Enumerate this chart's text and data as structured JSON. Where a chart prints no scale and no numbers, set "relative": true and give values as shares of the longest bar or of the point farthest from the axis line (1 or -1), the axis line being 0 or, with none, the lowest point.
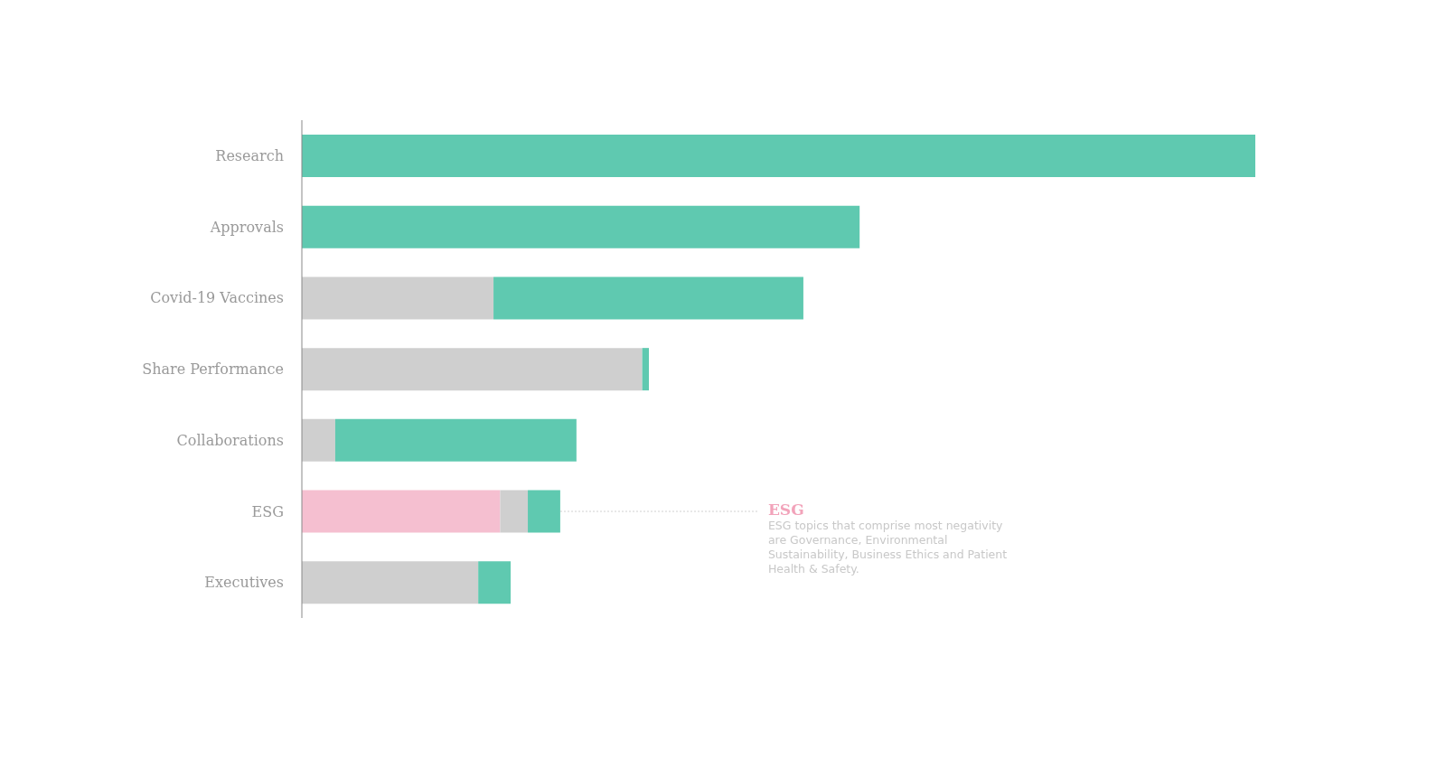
{
  "chart_data": {
    "type": "bar",
    "orientation": "horizontal",
    "stacked": true,
    "relative": true,
    "categories": [
      "Research",
      "Approvals",
      "Covid-19 Vaccines",
      "Share Performance",
      "Collaborations",
      "ESG",
      "Executives"
    ],
    "series": [
      {
        "color": "#f5bfd0",
        "values": [
          null,
          null,
          null,
          null,
          null,
          0.208,
          null
        ]
      },
      {
        "color": "#cfcfcf",
        "values": [
          null,
          null,
          0.201,
          0.357,
          0.035,
          0.029,
          0.185
        ]
      },
      {
        "color": "#5fc9b0",
        "values": [
          1,
          0.585,
          0.325,
          0.007,
          0.253,
          0.034,
          0.034
        ]
      }
    ],
    "annotations": [
      {
        "text": "ESG",
        "x": 0.271,
        "y": "ESG"
      },
      "ESG topics that comprise most negativity are Governance, Environmental Sustainability, Business Ethics and Patient Health & Safety."
    ]
  }
}
